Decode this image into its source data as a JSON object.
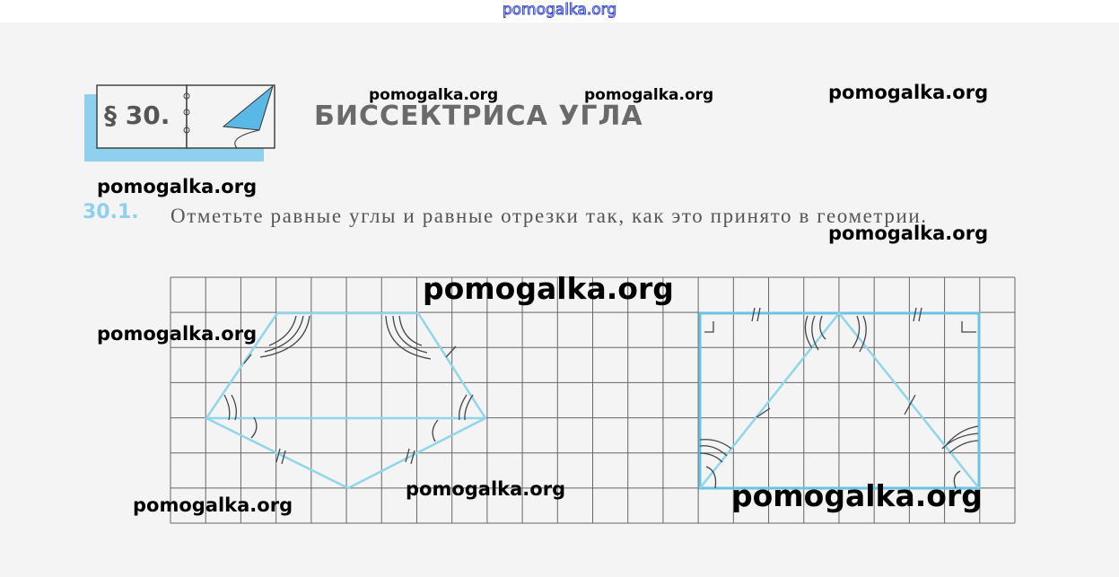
{
  "watermark_top": "pomogalka.org",
  "watermarks": [
    "pomogalka.org",
    "pomogalka.org",
    "pomogalka.org",
    "pomogalka.org",
    "pomogalka.org",
    "pomogalka.org",
    "pomogalka.org",
    "pomogalka.org",
    "pomogalka.org",
    "pomogalka.org"
  ],
  "section": {
    "badge": "§ 30.",
    "title": "БИССЕКТРИСА УГЛА"
  },
  "exercise": {
    "number": "30.1.",
    "text": "Отметьте равные углы и равные отрезки так, как это принято в геометрии."
  },
  "colors": {
    "figure_line": "#8fd6ea",
    "grid": "#555555",
    "accent": "#5ab8e6"
  }
}
